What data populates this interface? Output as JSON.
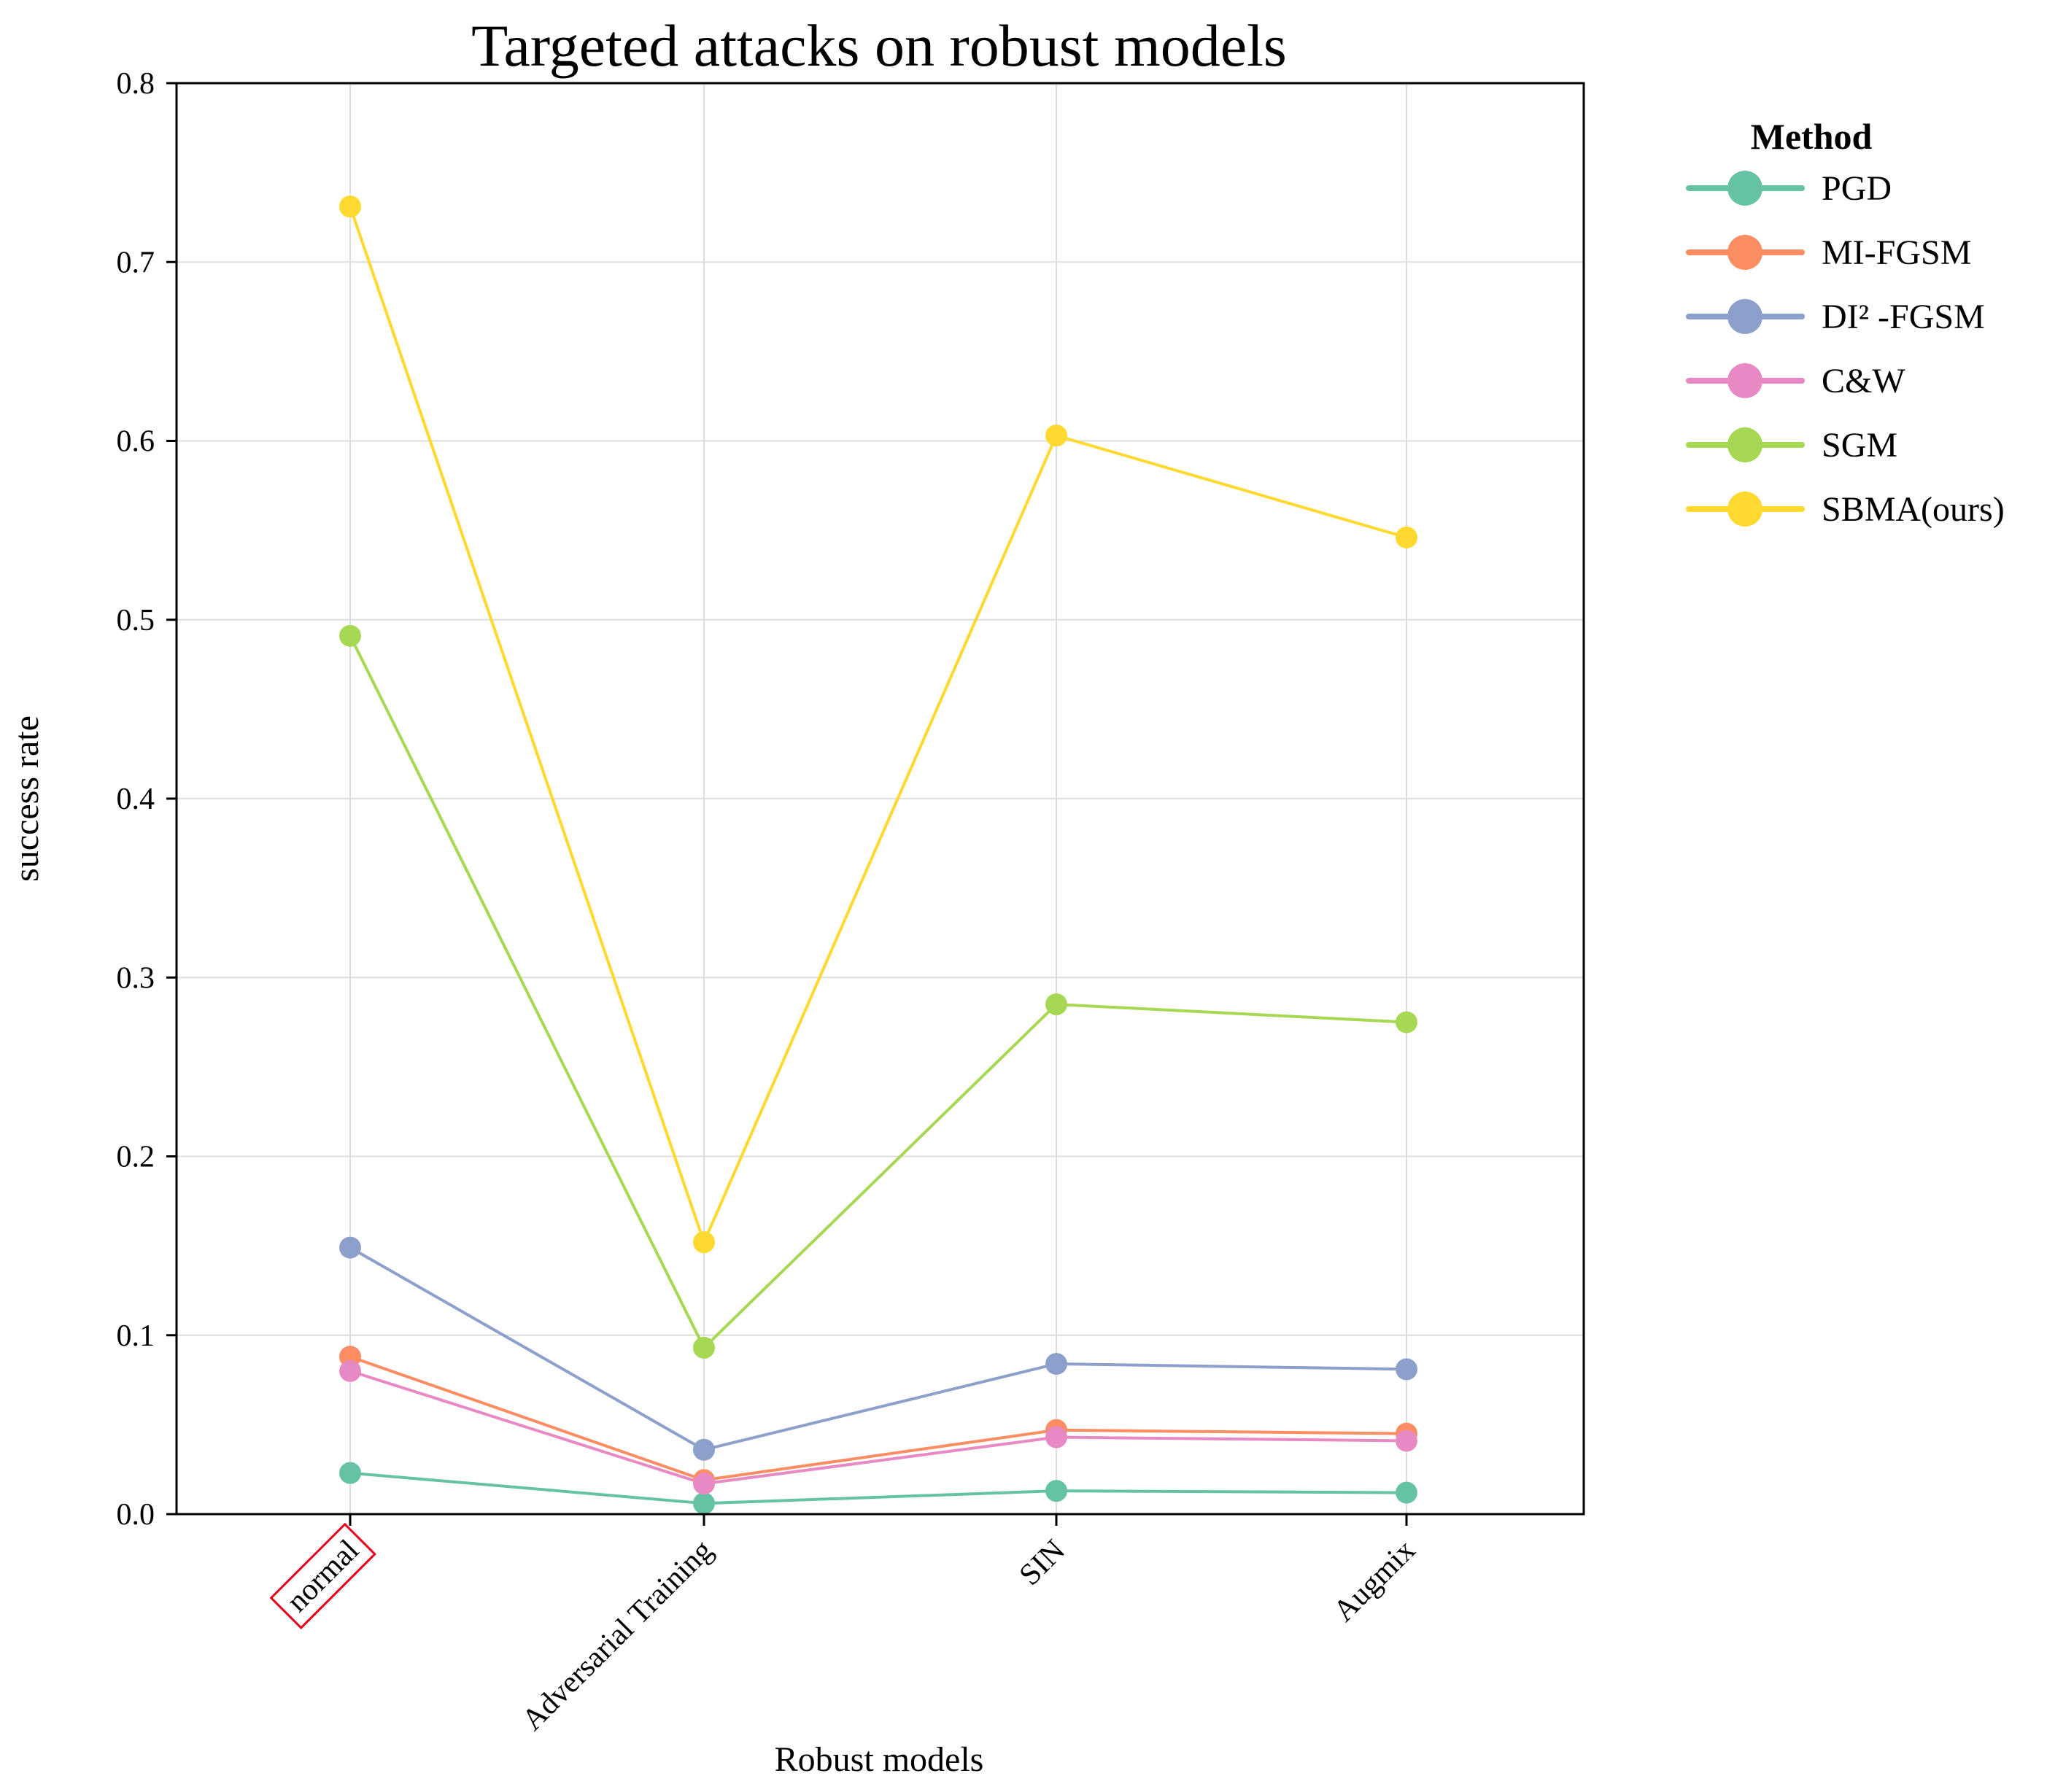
{
  "chart_data": {
    "type": "line",
    "title": "Targeted attacks on robust models",
    "xlabel": "Robust models",
    "ylabel": "success rate",
    "categories": [
      "normal",
      "Adversarial Training",
      "SIN",
      "Augmix"
    ],
    "highlighted_category": "normal",
    "ylim": [
      0,
      0.8
    ],
    "yticks": [
      "0.0",
      "0.1",
      "0.2",
      "0.3",
      "0.4",
      "0.5",
      "0.6",
      "0.7",
      "0.8"
    ],
    "grid": true,
    "legend_position": "right",
    "legend_title": "Method",
    "series": [
      {
        "name": "PGD",
        "color": "#66c2a5",
        "values": [
          0.023,
          0.006,
          0.013,
          0.012
        ]
      },
      {
        "name": "MI-FGSM",
        "color": "#fc8d62",
        "values": [
          0.088,
          0.019,
          0.047,
          0.045
        ]
      },
      {
        "name": "DI² -FGSM",
        "color": "#8da0cb",
        "values": [
          0.149,
          0.036,
          0.084,
          0.081
        ]
      },
      {
        "name": "C&W",
        "color": "#e78ac3",
        "values": [
          0.08,
          0.017,
          0.043,
          0.041
        ]
      },
      {
        "name": "SGM",
        "color": "#a6d854",
        "values": [
          0.491,
          0.093,
          0.285,
          0.275
        ]
      },
      {
        "name": "SBMA(ours)",
        "color": "#ffd92f",
        "values": [
          0.731,
          0.152,
          0.603,
          0.546
        ]
      }
    ]
  }
}
